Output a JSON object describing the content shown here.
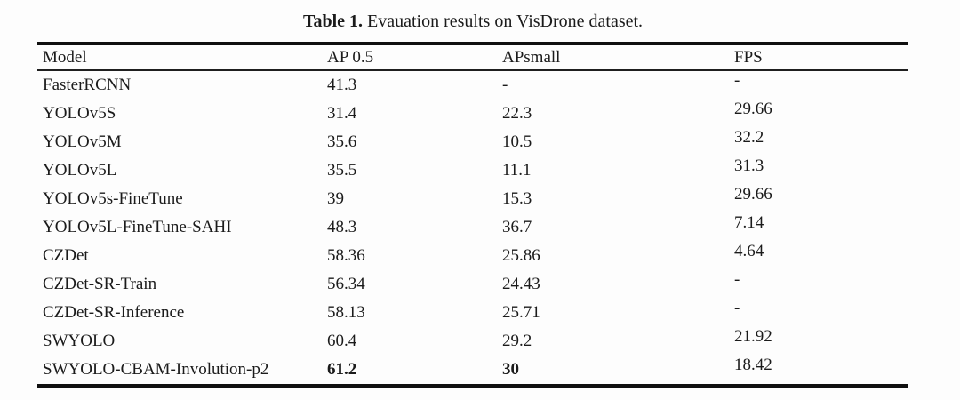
{
  "caption": {
    "label": "Table 1.",
    "text": " Evauation results on VisDrone dataset."
  },
  "table": {
    "columns": [
      "Model",
      "AP 0.5",
      "APsmall",
      "FPS"
    ],
    "rows": [
      {
        "model": "FasterRCNN",
        "ap05": "41.3",
        "apsmall": "-",
        "fps": "-"
      },
      {
        "model": "YOLOv5S",
        "ap05": "31.4",
        "apsmall": "22.3",
        "fps": "29.66"
      },
      {
        "model": "YOLOv5M",
        "ap05": "35.6",
        "apsmall": "10.5",
        "fps": "32.2"
      },
      {
        "model": "YOLOv5L",
        "ap05": "35.5",
        "apsmall": "11.1",
        "fps": "31.3"
      },
      {
        "model": "YOLOv5s-FineTune",
        "ap05": "39",
        "apsmall": "15.3",
        "fps": "29.66"
      },
      {
        "model": "YOLOv5L-FineTune-SAHI",
        "ap05": "48.3",
        "apsmall": "36.7",
        "fps": "7.14"
      },
      {
        "model": "CZDet",
        "ap05": "58.36",
        "apsmall": "25.86",
        "fps": "4.64"
      },
      {
        "model": "CZDet-SR-Train",
        "ap05": "56.34",
        "apsmall": "24.43",
        "fps": "-"
      },
      {
        "model": "CZDet-SR-Inference",
        "ap05": "58.13",
        "apsmall": "25.71",
        "fps": "-"
      },
      {
        "model": "SWYOLO",
        "ap05": "60.4",
        "apsmall": "29.2",
        "fps": "21.92"
      },
      {
        "model": "SWYOLO-CBAM-Involution-p2",
        "ap05": "61.2",
        "apsmall": "30",
        "fps": "18.42"
      }
    ]
  },
  "colors": {
    "text": "#1b1b1b",
    "rule": "#101010",
    "background": "#fdfdfd"
  },
  "chart_data": {
    "type": "table",
    "title": "Table 1. Evauation results on VisDrone dataset.",
    "columns": [
      "Model",
      "AP 0.5",
      "APsmall",
      "FPS"
    ],
    "rows": [
      [
        "FasterRCNN",
        "41.3",
        "-",
        "-"
      ],
      [
        "YOLOv5S",
        "31.4",
        "22.3",
        "29.66"
      ],
      [
        "YOLOv5M",
        "35.6",
        "10.5",
        "32.2"
      ],
      [
        "YOLOv5L",
        "35.5",
        "11.1",
        "31.3"
      ],
      [
        "YOLOv5s-FineTune",
        "39",
        "15.3",
        "29.66"
      ],
      [
        "YOLOv5L-FineTune-SAHI",
        "48.3",
        "36.7",
        "7.14"
      ],
      [
        "CZDet",
        "58.36",
        "25.86",
        "4.64"
      ],
      [
        "CZDet-SR-Train",
        "56.34",
        "24.43",
        "-"
      ],
      [
        "CZDet-SR-Inference",
        "58.13",
        "25.71",
        "-"
      ],
      [
        "SWYOLO",
        "60.4",
        "29.2",
        "21.92"
      ],
      [
        "SWYOLO-CBAM-Involution-p2",
        "61.2",
        "30",
        "18.42"
      ]
    ],
    "bold_cells": [
      [
        "SWYOLO-CBAM-Involution-p2",
        "AP 0.5"
      ],
      [
        "SWYOLO-CBAM-Involution-p2",
        "APsmall"
      ]
    ]
  }
}
